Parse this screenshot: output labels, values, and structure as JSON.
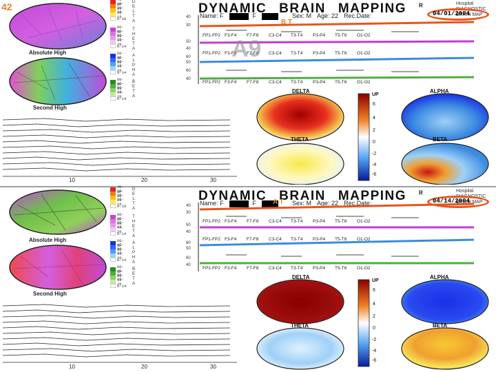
{
  "slide_number": "42",
  "title_words": [
    "DYNAMIC",
    "BRAIN",
    "MAPPING"
  ],
  "title_mark": "R",
  "hospital_text": "Hospital\nDIAGNOSTIC\nBRAIN MAP",
  "info": {
    "name_label": "Name: F",
    "first_label": "F",
    "sex_label": "Sex: M",
    "age_label": "Age: 22",
    "rec_label": "Rec.Date:"
  },
  "colors": {
    "date_oval": "#e8541c",
    "marker": "#e0842a",
    "delta_trace": "#e8541c",
    "theta_trace": "#c23bd4",
    "alpha_trace": "#3b8be0",
    "beta_trace": "#4fae3c"
  },
  "top": {
    "date": "04/01/2004",
    "marker": "B T",
    "big_label": "A9",
    "axis_ticks": [
      "10",
      "20",
      "30"
    ]
  },
  "bottom": {
    "date": "04/14/2004",
    "marker": "A T",
    "axis_ticks": [
      "10",
      "20",
      "30"
    ]
  },
  "maps": {
    "absolute": "Absolute High",
    "second": "Second High"
  },
  "bands": {
    "delta": "DELTA",
    "theta": "THETA",
    "alpha": "ALPHA",
    "beta": "BETA",
    "delta_letters": "DELTA",
    "theta_letters": "THETA",
    "alpha_letters": "ALPHA",
    "beta_letters": "BETA"
  },
  "legend": {
    "delta": [
      "40-UP",
      "30-39",
      "20-29",
      "10-19",
      "0-10"
    ],
    "theta": [
      "60-UP",
      "45-59",
      "30-44",
      "15-29",
      "0-14"
    ],
    "alpha": [
      "60-UP",
      "45-59",
      "30-44",
      "15-29",
      "0-14"
    ],
    "beta": [
      "60-UP",
      "45-59",
      "30-44",
      "15-29",
      "0-14"
    ]
  },
  "channels_row1": [
    "FP1-FP2",
    "F3-F4",
    "F7-F8",
    "C3-C4",
    "T3-T4",
    "P3-P4",
    "T5-T6",
    "O1-O2"
  ],
  "channels_row2": [
    "FP1-FP2",
    "F3-F4",
    "F7-F8",
    "C3-C4",
    "T3-T4",
    "P3-P4",
    "T5-T6",
    "O1-O2"
  ],
  "channels_row3": [
    "FP1-FP2",
    "F3-F4",
    "F7-F8",
    "C3-C4",
    "T3-T4",
    "P3-P4",
    "T5-T6",
    "O1-O2"
  ],
  "ruler_values": [
    "40",
    "30",
    "50",
    "40",
    "60",
    "50",
    "60",
    "40"
  ],
  "colorbar": {
    "label": "UP",
    "ticks": [
      "6",
      "4",
      "2",
      "0",
      "-2",
      "-4",
      "-6"
    ]
  }
}
